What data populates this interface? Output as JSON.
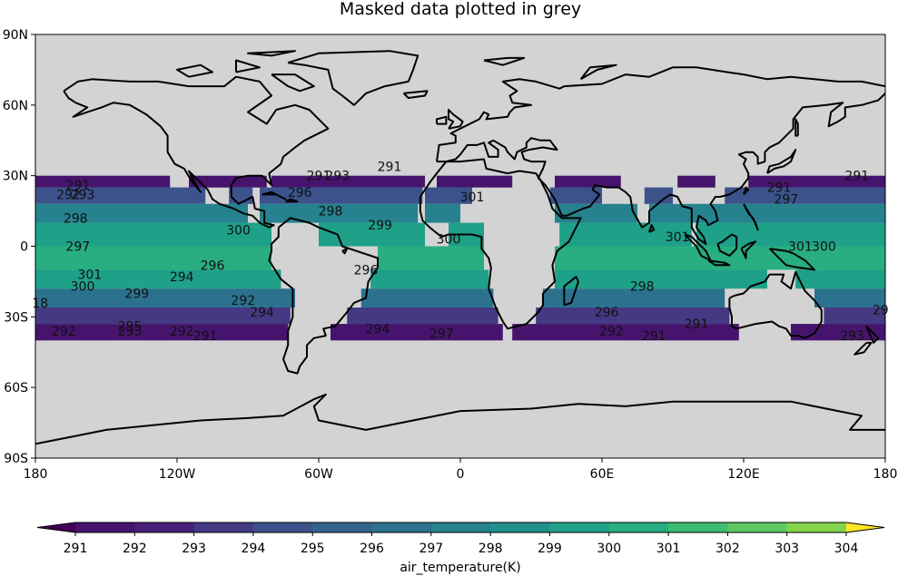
{
  "chart_data": {
    "type": "heatmap",
    "title": "Masked data plotted in grey",
    "projection": "cylindrical",
    "mask_color": "#d3d3d3",
    "x_ticks": [
      {
        "value": -180,
        "label": "180"
      },
      {
        "value": -120,
        "label": "120W"
      },
      {
        "value": -60,
        "label": "60W"
      },
      {
        "value": 0,
        "label": "0"
      },
      {
        "value": 60,
        "label": "60E"
      },
      {
        "value": 120,
        "label": "120E"
      },
      {
        "value": 180,
        "label": "180"
      }
    ],
    "y_ticks": [
      {
        "value": 90,
        "label": "90N"
      },
      {
        "value": 60,
        "label": "60N"
      },
      {
        "value": 30,
        "label": "30N"
      },
      {
        "value": 0,
        "label": "0"
      },
      {
        "value": -30,
        "label": "30S"
      },
      {
        "value": -60,
        "label": "60S"
      },
      {
        "value": -90,
        "label": "90S"
      }
    ],
    "xlim": [
      -180,
      180
    ],
    "ylim": [
      -90,
      90
    ],
    "colorbar": {
      "label": "air_temperature(K)",
      "levels": [
        291,
        292,
        293,
        294,
        295,
        296,
        297,
        298,
        299,
        300,
        301,
        302,
        303,
        304
      ],
      "extend": "both",
      "colors": [
        "#440154",
        "#46146c",
        "#471f7a",
        "#443983",
        "#3b528b",
        "#33638d",
        "#2c728e",
        "#26828e",
        "#21918c",
        "#1fa088",
        "#28ae80",
        "#3fbc73",
        "#5ec962",
        "#84d44b",
        "#addc30",
        "#d8e219",
        "#fde725"
      ]
    },
    "data_bands": [
      {
        "lat": [
          25,
          30
        ],
        "lon_ranges": [
          [
            -180,
            -123
          ],
          [
            -115,
            -82
          ],
          [
            -80,
            -15
          ],
          [
            -10,
            22
          ],
          [
            40,
            68
          ],
          [
            92,
            108
          ],
          [
            122,
            180
          ]
        ],
        "value": 291.3
      },
      {
        "lat": [
          18,
          25
        ],
        "lon_ranges": [
          [
            -180,
            -108
          ],
          [
            -98,
            -88
          ],
          [
            -85,
            -16
          ],
          [
            -15,
            5
          ],
          [
            38,
            60
          ],
          [
            78,
            90
          ],
          [
            112,
            180
          ]
        ],
        "value": 294.5
      },
      {
        "lat": [
          10,
          18
        ],
        "lon_ranges": [
          [
            -180,
            -90
          ],
          [
            -85,
            -18
          ],
          [
            -15,
            0
          ],
          [
            40,
            75
          ],
          [
            80,
            180
          ]
        ],
        "value": 297.5
      },
      {
        "lat": [
          0,
          10
        ],
        "lon_ranges": [
          [
            -180,
            -80
          ],
          [
            -60,
            -15
          ],
          [
            -5,
            10
          ],
          [
            42,
            98
          ],
          [
            100,
            180
          ]
        ],
        "value": 299.7
      },
      {
        "lat": [
          -10,
          0
        ],
        "lon_ranges": [
          [
            -180,
            -80
          ],
          [
            -35,
            10
          ],
          [
            40,
            180
          ]
        ],
        "value": 300.4
      },
      {
        "lat": [
          -18,
          -10
        ],
        "lon_ranges": [
          [
            -180,
            -76
          ],
          [
            -38,
            12
          ],
          [
            40,
            130
          ],
          [
            142,
            180
          ]
        ],
        "value": 299.0
      },
      {
        "lat": [
          -26,
          -18
        ],
        "lon_ranges": [
          [
            -180,
            -70
          ],
          [
            -42,
            14
          ],
          [
            35,
            112
          ],
          [
            150,
            180
          ]
        ],
        "value": 296.2
      },
      {
        "lat": [
          -33,
          -26
        ],
        "lon_ranges": [
          [
            -180,
            -72
          ],
          [
            -48,
            16
          ],
          [
            32,
            114
          ],
          [
            154,
            180
          ]
        ],
        "value": 293.6
      },
      {
        "lat": [
          -40,
          -33
        ],
        "lon_ranges": [
          [
            -180,
            -73
          ],
          [
            -55,
            18
          ],
          [
            22,
            118
          ],
          [
            140,
            180
          ]
        ],
        "value": 291.6
      }
    ],
    "contour_labels": [
      {
        "text": "291",
        "lon": -162,
        "lat": 26
      },
      {
        "text": "292",
        "lon": -166,
        "lat": 22
      },
      {
        "text": "293",
        "lon": -160,
        "lat": 22
      },
      {
        "text": "298",
        "lon": -163,
        "lat": 12
      },
      {
        "text": "300",
        "lon": -94,
        "lat": 7
      },
      {
        "text": "297",
        "lon": -162,
        "lat": 0
      },
      {
        "text": "301",
        "lon": -157,
        "lat": -12
      },
      {
        "text": "300",
        "lon": -160,
        "lat": -17
      },
      {
        "text": "299",
        "lon": -137,
        "lat": -20
      },
      {
        "text": "294",
        "lon": -118,
        "lat": -13
      },
      {
        "text": "296",
        "lon": -105,
        "lat": -8
      },
      {
        "text": "292",
        "lon": -92,
        "lat": -23
      },
      {
        "text": "294",
        "lon": -84,
        "lat": -28
      },
      {
        "text": "295",
        "lon": -140,
        "lat": -34
      },
      {
        "text": "293",
        "lon": -140,
        "lat": -36
      },
      {
        "text": "292",
        "lon": -118,
        "lat": -36
      },
      {
        "text": "292",
        "lon": -168,
        "lat": -36
      },
      {
        "text": "291",
        "lon": -108,
        "lat": -38
      },
      {
        "text": "294",
        "lon": -35,
        "lat": -35
      },
      {
        "text": "297",
        "lon": -8,
        "lat": -37
      },
      {
        "text": "291",
        "lon": -60,
        "lat": 30
      },
      {
        "text": "293",
        "lon": -52,
        "lat": 30
      },
      {
        "text": "291",
        "lon": -30,
        "lat": 34
      },
      {
        "text": "296",
        "lon": -68,
        "lat": 23
      },
      {
        "text": "298",
        "lon": -55,
        "lat": 15
      },
      {
        "text": "299",
        "lon": -34,
        "lat": 9
      },
      {
        "text": "300",
        "lon": -5,
        "lat": 3
      },
      {
        "text": "301",
        "lon": 5,
        "lat": 21
      },
      {
        "text": "296",
        "lon": -40,
        "lat": -10
      },
      {
        "text": "298",
        "lon": 77,
        "lat": -17
      },
      {
        "text": "296",
        "lon": 62,
        "lat": -28
      },
      {
        "text": "292",
        "lon": 64,
        "lat": -36
      },
      {
        "text": "291",
        "lon": 82,
        "lat": -38
      },
      {
        "text": "291",
        "lon": 100,
        "lat": -33
      },
      {
        "text": "301",
        "lon": 92,
        "lat": 4
      },
      {
        "text": "301",
        "lon": 144,
        "lat": 0
      },
      {
        "text": "300",
        "lon": 154,
        "lat": 0
      },
      {
        "text": "291",
        "lon": 135,
        "lat": 25
      },
      {
        "text": "291",
        "lon": 168,
        "lat": 30
      },
      {
        "text": "297",
        "lon": 138,
        "lat": 20
      },
      {
        "text": "29",
        "lon": 178,
        "lat": -27
      },
      {
        "text": "293",
        "lon": 166,
        "lat": -38
      },
      {
        "text": "18",
        "lon": -178,
        "lat": -24
      }
    ]
  }
}
